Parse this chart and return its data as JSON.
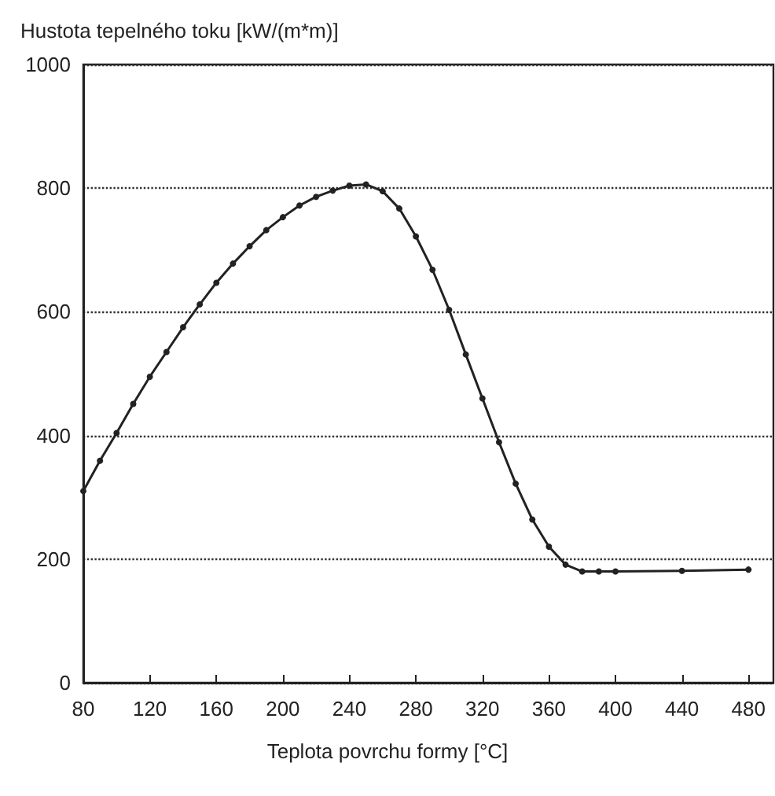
{
  "chart_data": {
    "type": "line",
    "xlabel": "Teplota povrchu formy [°C]",
    "ylabel": "Hustota tepelného toku [kW/(m*m)]",
    "x": [
      80,
      90,
      100,
      110,
      120,
      130,
      140,
      150,
      160,
      170,
      180,
      190,
      200,
      210,
      220,
      230,
      240,
      250,
      260,
      270,
      280,
      290,
      300,
      310,
      320,
      330,
      340,
      350,
      360,
      370,
      380,
      390,
      400,
      440,
      480
    ],
    "series": [
      {
        "color": "#222222",
        "values": [
          310,
          359,
          404,
          451,
          495,
          535,
          575,
          612,
          647,
          678,
          706,
          732,
          753,
          772,
          786,
          796,
          804,
          806,
          795,
          767,
          722,
          668,
          603,
          531,
          460,
          389,
          322,
          264,
          220,
          191,
          180,
          180,
          180,
          181,
          183
        ]
      }
    ],
    "xlim": [
      80,
      495
    ],
    "xticks": [
      80,
      120,
      160,
      200,
      240,
      280,
      320,
      360,
      400,
      440,
      480
    ],
    "ylim": [
      0,
      1000
    ],
    "yticks": [
      0,
      200,
      400,
      600,
      800,
      1000
    ],
    "grid": "y",
    "marker": "circle",
    "line_style": "solid"
  }
}
